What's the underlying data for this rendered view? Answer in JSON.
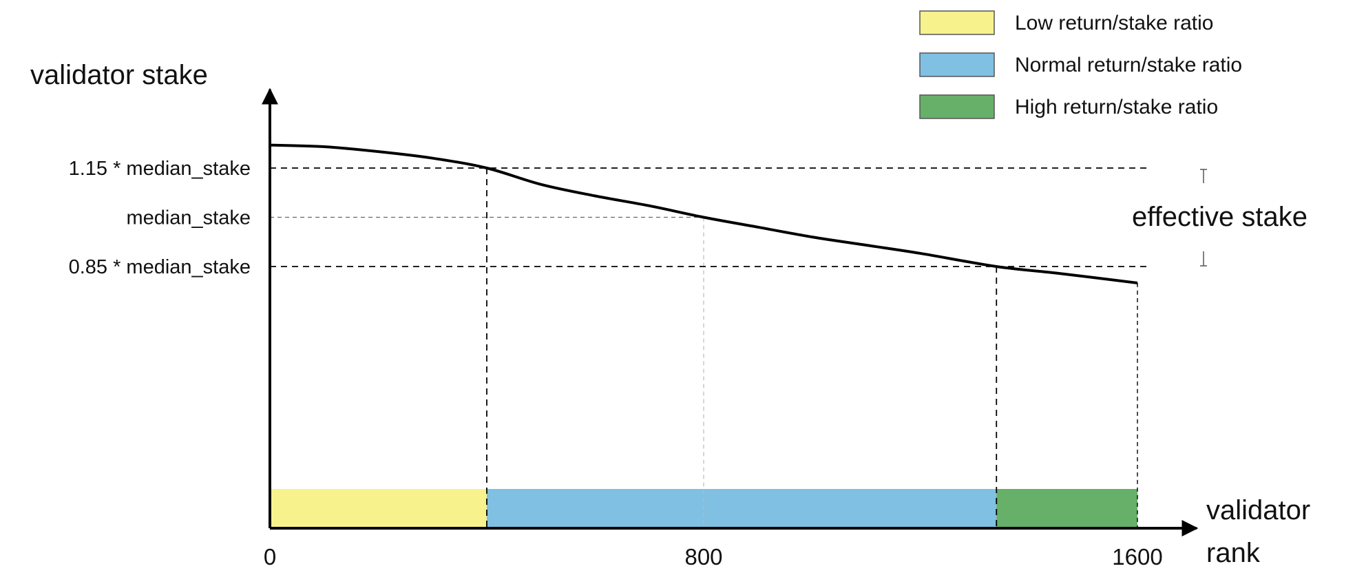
{
  "chart_data": {
    "type": "line",
    "xlabel_lines": [
      "validator",
      "rank"
    ],
    "ylabel": "validator stake",
    "x_ticks": [
      "0",
      "800",
      "1600"
    ],
    "xlim": [
      0,
      1600
    ],
    "ylim": [
      0,
      1.6
    ],
    "reference_lines": [
      {
        "label": "1.15 * median_stake",
        "value": 1.15,
        "x_end": 400,
        "style": "dashed"
      },
      {
        "label": "median_stake",
        "value": 1.0,
        "x_end": 800,
        "style": "thin"
      },
      {
        "label": "0.85 * median_stake",
        "value": 0.85,
        "x_end": 1340,
        "style": "dashed"
      }
    ],
    "curve": [
      {
        "x": 0,
        "y": 1.22
      },
      {
        "x": 100,
        "y": 1.215
      },
      {
        "x": 200,
        "y": 1.2
      },
      {
        "x": 300,
        "y": 1.18
      },
      {
        "x": 400,
        "y": 1.15
      },
      {
        "x": 500,
        "y": 1.1
      },
      {
        "x": 600,
        "y": 1.065
      },
      {
        "x": 700,
        "y": 1.035
      },
      {
        "x": 800,
        "y": 1.0
      },
      {
        "x": 900,
        "y": 0.97
      },
      {
        "x": 1000,
        "y": 0.94
      },
      {
        "x": 1100,
        "y": 0.915
      },
      {
        "x": 1200,
        "y": 0.89
      },
      {
        "x": 1340,
        "y": 0.85
      },
      {
        "x": 1450,
        "y": 0.83
      },
      {
        "x": 1600,
        "y": 0.8
      }
    ],
    "bands": [
      {
        "name": "Low return/stake ratio",
        "x_start": 0,
        "x_end": 400,
        "color": "#f7f28c"
      },
      {
        "name": "Normal return/stake ratio",
        "x_start": 400,
        "x_end": 1340,
        "color": "#7fc0e3"
      },
      {
        "name": "High return/stake ratio",
        "x_start": 1340,
        "x_end": 1600,
        "color": "#66b06a"
      }
    ],
    "annotation": "effective stake",
    "legend": [
      {
        "label": "Low return/stake ratio",
        "color": "#f7f28c"
      },
      {
        "label": "Normal return/stake ratio",
        "color": "#7fc0e3"
      },
      {
        "label": "High return/stake ratio",
        "color": "#66b06a"
      }
    ],
    "legend_position": "top-right"
  }
}
